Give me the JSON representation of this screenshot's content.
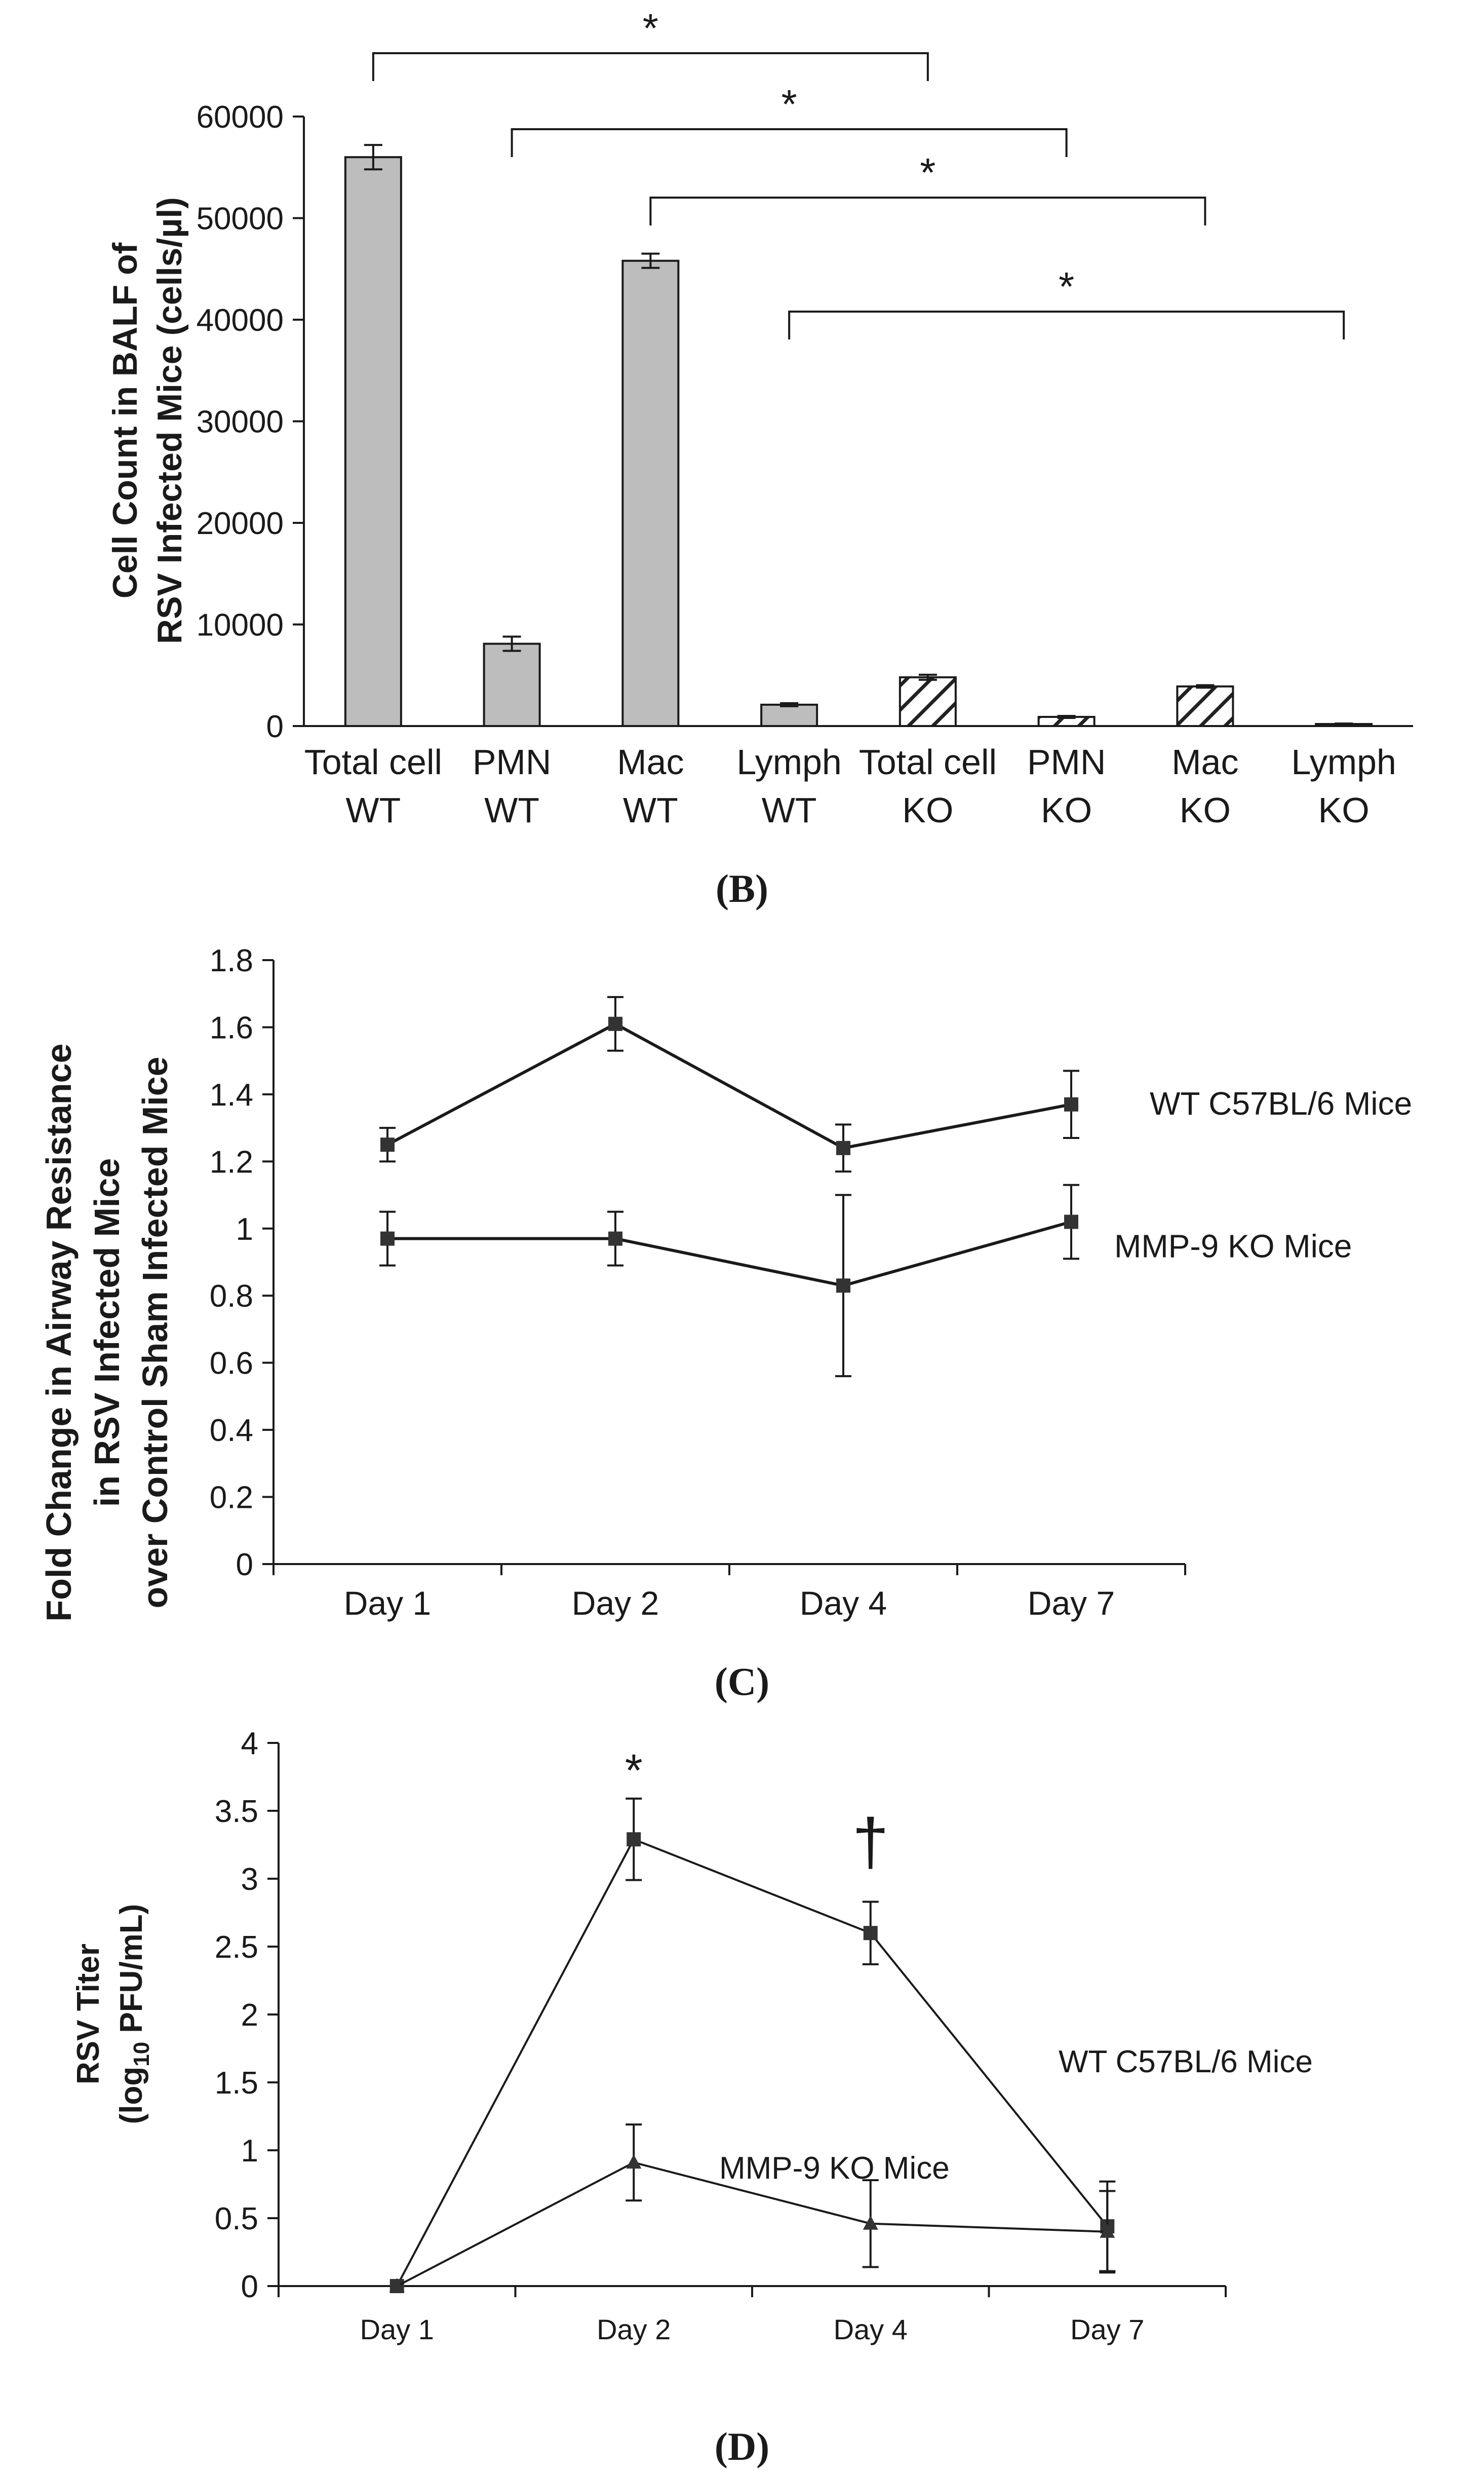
{
  "chart_data": [
    {
      "panel": "B",
      "type": "bar",
      "panel_label": "(B)",
      "ylabel_lines": [
        "Cell Count in BALF of",
        "RSV Infected Mice (cells/µl)"
      ],
      "ylim": [
        0,
        60000
      ],
      "yticks": [
        0,
        10000,
        20000,
        30000,
        40000,
        50000,
        60000
      ],
      "grid": false,
      "categories": [
        {
          "line1": "Total cell",
          "line2": "WT",
          "value": 56000,
          "error": 1200,
          "pattern": "solid"
        },
        {
          "line1": "PMN",
          "line2": "WT",
          "value": 8100,
          "error": 700,
          "pattern": "solid"
        },
        {
          "line1": "Mac",
          "line2": "WT",
          "value": 45800,
          "error": 700,
          "pattern": "solid"
        },
        {
          "line1": "Lymph",
          "line2": "WT",
          "value": 2100,
          "error": 150,
          "pattern": "solid"
        },
        {
          "line1": "Total cell",
          "line2": "KO",
          "value": 4800,
          "error": 250,
          "pattern": "hatched"
        },
        {
          "line1": "PMN",
          "line2": "KO",
          "value": 900,
          "error": 100,
          "pattern": "hatched"
        },
        {
          "line1": "Mac",
          "line2": "KO",
          "value": 3900,
          "error": 120,
          "pattern": "hatched"
        },
        {
          "line1": "Lymph",
          "line2": "KO",
          "value": 200,
          "error": 50,
          "pattern": "hatched"
        }
      ],
      "significance": [
        {
          "from": 0,
          "to": 4,
          "label": "*"
        },
        {
          "from": 1,
          "to": 5,
          "label": "*"
        },
        {
          "from": 2,
          "to": 6,
          "label": "*"
        },
        {
          "from": 3,
          "to": 7,
          "label": "*"
        }
      ]
    },
    {
      "panel": "C",
      "type": "line",
      "panel_label": "(C)",
      "ylabel_lines": [
        "Fold Change in Airway Resistance",
        "in RSV Infected Mice",
        "over Control Sham Infected Mice"
      ],
      "ylim": [
        0,
        1.8
      ],
      "yticks": [
        "0",
        "0.2",
        "0.4",
        "0.6",
        "0.8",
        "1",
        "1.2",
        "1.4",
        "1.6",
        "1.8"
      ],
      "grid": false,
      "categories": [
        "Day 1",
        "Day 2",
        "Day 4",
        "Day 7"
      ],
      "series": [
        {
          "name": "WT C57BL/6 Mice",
          "values": [
            1.25,
            1.61,
            1.24,
            1.37
          ],
          "errors": [
            0.05,
            0.08,
            0.07,
            0.1
          ],
          "marker": "square"
        },
        {
          "name": "MMP-9 KO Mice",
          "values": [
            0.97,
            0.97,
            0.83,
            1.02
          ],
          "errors": [
            0.08,
            0.08,
            0.27,
            0.11
          ],
          "marker": "square"
        }
      ]
    },
    {
      "panel": "D",
      "type": "line",
      "panel_label": "(D)",
      "ylabel_line1": "RSV Titer",
      "ylabel_line2_prefix": "(log",
      "ylabel_line2_sub": "10",
      "ylabel_line2_suffix": " PFU/mL)",
      "ylim": [
        0,
        4
      ],
      "yticks": [
        "0",
        "0.5",
        "1",
        "1.5",
        "2",
        "2.5",
        "3",
        "3.5",
        "4"
      ],
      "grid": false,
      "categories": [
        "Day 1",
        "Day 2",
        "Day 4",
        "Day 7"
      ],
      "series": [
        {
          "name": "WT C57BL/6 Mice",
          "values": [
            0,
            3.29,
            2.6,
            0.44
          ],
          "errors": [
            0,
            0.3,
            0.23,
            0.33
          ],
          "marker": "square"
        },
        {
          "name": "MMP-9 KO Mice",
          "values": [
            0,
            0.91,
            0.46,
            0.4
          ],
          "errors": [
            0,
            0.28,
            0.32,
            0.3
          ],
          "marker": "triangle"
        }
      ],
      "annotations": [
        {
          "category": 1,
          "text": "*"
        },
        {
          "category": 2,
          "text": "†"
        }
      ]
    }
  ]
}
